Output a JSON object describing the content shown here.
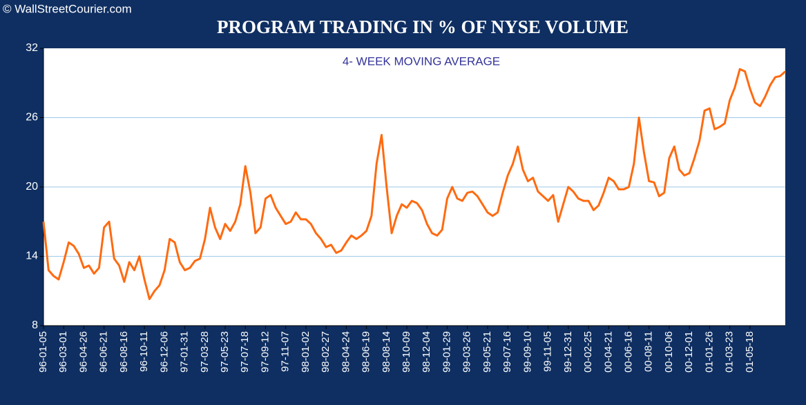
{
  "chart_data": {
    "type": "line",
    "copyright": "© WallStreetCourier.com",
    "title": "PROGRAM TRADING IN % OF NYSE VOLUME",
    "subtitle": "4- WEEK MOVING AVERAGE",
    "categories": [
      "96-01-05",
      null,
      null,
      null,
      "96-03-01",
      null,
      null,
      null,
      "96-04-26",
      null,
      null,
      null,
      "96-06-21",
      null,
      null,
      null,
      "96-08-16",
      null,
      null,
      null,
      "96-10-11",
      null,
      null,
      null,
      "96-12-06",
      null,
      null,
      null,
      "97-01-31",
      null,
      null,
      null,
      "97-03-28",
      null,
      null,
      null,
      "97-05-23",
      null,
      null,
      null,
      "97-07-18",
      null,
      null,
      null,
      "97-09-12",
      null,
      null,
      null,
      "97-11-07",
      null,
      null,
      null,
      "98-01-02",
      null,
      null,
      null,
      "98-02-27",
      null,
      null,
      null,
      "98-04-24",
      null,
      null,
      null,
      "98-06-19",
      null,
      null,
      null,
      "98-08-14",
      null,
      null,
      null,
      "98-10-09",
      null,
      null,
      null,
      "98-12-04",
      null,
      null,
      null,
      "99-01-29",
      null,
      null,
      null,
      "99-03-26",
      null,
      null,
      null,
      "99-05-21",
      null,
      null,
      null,
      "99-07-16",
      null,
      null,
      null,
      "99-09-10",
      null,
      null,
      null,
      "99-11-05",
      null,
      null,
      null,
      "99-12-31",
      null,
      null,
      null,
      "00-02-25",
      null,
      null,
      null,
      "00-04-21",
      null,
      null,
      null,
      "00-06-16",
      null,
      null,
      null,
      "00-08-11",
      null,
      null,
      null,
      "00-10-06",
      null,
      null,
      null,
      "00-12-01",
      null,
      null,
      null,
      "01-01-26",
      null,
      null,
      null,
      "01-03-23",
      null,
      null,
      null,
      "01-05-18",
      null,
      null,
      null,
      null,
      null,
      null,
      null
    ],
    "series": [
      {
        "name": "4- WEEK MOVING AVERAGE",
        "color": "#ff6a10",
        "values": [
          17.0,
          12.8,
          12.3,
          12.0,
          13.5,
          15.2,
          14.9,
          14.2,
          13.0,
          13.2,
          12.5,
          13.0,
          16.5,
          17.0,
          13.8,
          13.2,
          11.8,
          13.5,
          12.8,
          14.0,
          12.0,
          10.3,
          11.0,
          11.5,
          12.8,
          15.5,
          15.2,
          13.5,
          12.8,
          13.0,
          13.6,
          13.8,
          15.5,
          18.2,
          16.5,
          15.5,
          16.8,
          16.2,
          17.0,
          18.5,
          21.8,
          19.5,
          16.0,
          16.5,
          19.0,
          19.3,
          18.2,
          17.5,
          16.8,
          17.0,
          17.8,
          17.2,
          17.2,
          16.8,
          16.0,
          15.5,
          14.8,
          15.0,
          14.3,
          14.5,
          15.2,
          15.8,
          15.5,
          15.8,
          16.2,
          17.5,
          22.0,
          24.5,
          20.0,
          16.0,
          17.5,
          18.5,
          18.2,
          18.8,
          18.6,
          18.0,
          16.8,
          16.0,
          15.8,
          16.3,
          19.0,
          20.0,
          19.0,
          18.8,
          19.5,
          19.6,
          19.2,
          18.5,
          17.8,
          17.5,
          17.8,
          19.5,
          21.0,
          22.0,
          23.5,
          21.5,
          20.5,
          20.8,
          19.6,
          19.2,
          18.8,
          19.3,
          17.0,
          18.5,
          20.0,
          19.6,
          19.0,
          18.8,
          18.8,
          18.0,
          18.4,
          19.5,
          20.8,
          20.5,
          19.8,
          19.8,
          20.0,
          22.0,
          26.0,
          23.0,
          20.5,
          20.4,
          19.2,
          19.5,
          22.5,
          23.5,
          21.5,
          21.0,
          21.2,
          22.5,
          24.0,
          26.6,
          26.8,
          25.0,
          25.2,
          25.5,
          27.5,
          28.6,
          30.2,
          30.0,
          28.5,
          27.3,
          27.0,
          27.8,
          28.8,
          29.5,
          29.6,
          30.0
        ]
      }
    ],
    "ylim": [
      8,
      32
    ],
    "yticks": [
      8,
      14,
      20,
      26,
      32
    ],
    "grid": true
  }
}
